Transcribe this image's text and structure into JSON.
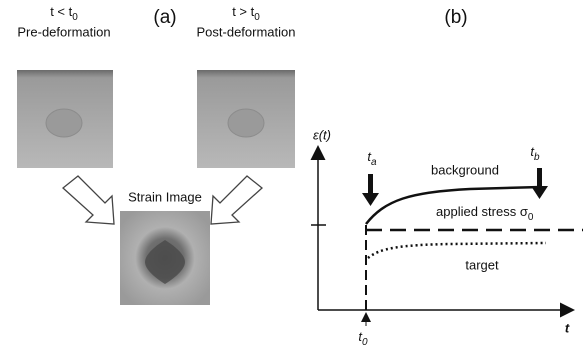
{
  "panel_a": {
    "label": "(a)",
    "pre": {
      "condition": "t < t",
      "condition_sub": "0",
      "caption": "Pre-deformation"
    },
    "post": {
      "condition": "t > t",
      "condition_sub": "0",
      "caption": "Post-deformation"
    },
    "strain_caption": "Strain Image"
  },
  "panel_b": {
    "label": "(b)",
    "y_axis": "ε(t)",
    "x_axis": "t",
    "t0": {
      "main": "t",
      "sub": "0"
    },
    "ta": {
      "main": "t",
      "sub": "a"
    },
    "tb": {
      "main": "t",
      "sub": "b"
    },
    "curves": {
      "background": "background",
      "applied": "applied stress σ",
      "applied_sub": "0",
      "target": "target"
    }
  }
}
